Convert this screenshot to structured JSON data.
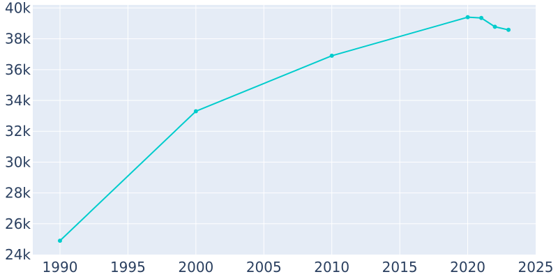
{
  "chart_data": {
    "type": "line",
    "title": "",
    "xlabel": "",
    "ylabel": "",
    "xlim": [
      1988,
      2025
    ],
    "ylim": [
      24000,
      40200
    ],
    "x_ticks": [
      1990,
      1995,
      2000,
      2005,
      2010,
      2015,
      2020,
      2025
    ],
    "x_tick_labels": [
      "1990",
      "1995",
      "2000",
      "2005",
      "2010",
      "2015",
      "2020",
      "2025"
    ],
    "y_ticks": [
      24000,
      26000,
      28000,
      30000,
      32000,
      34000,
      36000,
      38000,
      40000
    ],
    "y_tick_labels": [
      "24k",
      "26k",
      "28k",
      "30k",
      "32k",
      "34k",
      "36k",
      "38k",
      "40k"
    ],
    "grid": true,
    "legend": "none",
    "series": [
      {
        "color": "#00cccc",
        "x": [
          1990,
          2000,
          2010,
          2020,
          2021,
          2022,
          2023
        ],
        "y": [
          24900,
          33300,
          36900,
          39400,
          39350,
          38780,
          38580
        ]
      }
    ]
  }
}
